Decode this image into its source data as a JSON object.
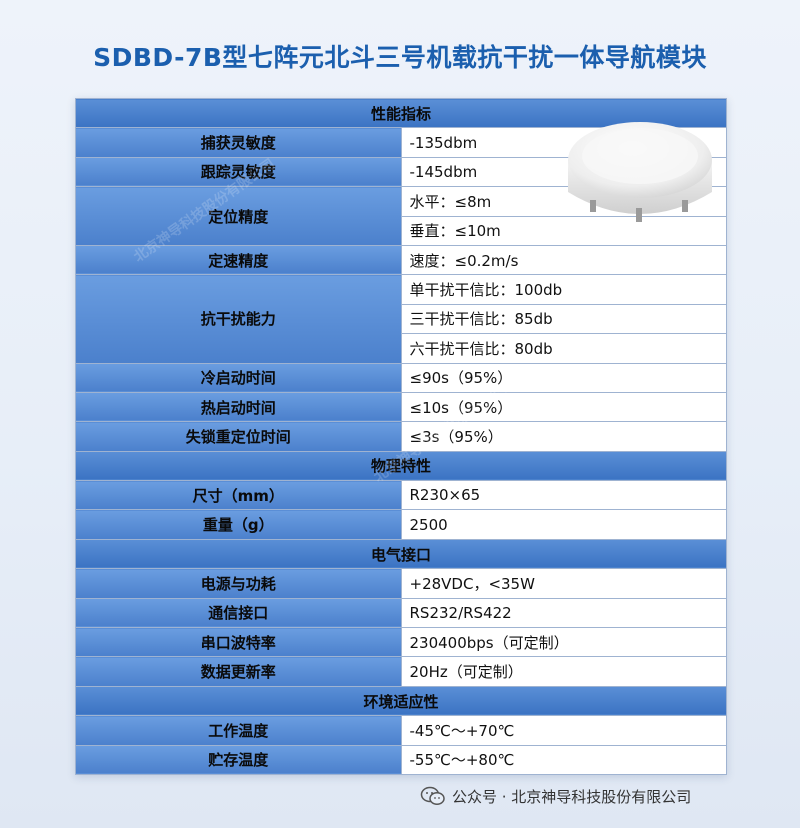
{
  "title": "SDBD-7B型七阵元北斗三号机载抗干扰一体导航模块",
  "sections": {
    "performance": "性能指标",
    "physical": "物理特性",
    "electrical": "电气接口",
    "environment": "环境适应性"
  },
  "rows": {
    "acq_label": "捕获灵敏度",
    "acq_value": "-135dbm",
    "trk_label": "跟踪灵敏度",
    "trk_value": "-145dbm",
    "pos_label": "定位精度",
    "pos_h": "水平：≤8m",
    "pos_v": "垂直：≤10m",
    "vel_label": "定速精度",
    "vel_value": "速度：≤0.2m/s",
    "aj_label": "抗干扰能力",
    "aj_1": "单干扰干信比：100db",
    "aj_3": "三干扰干信比：85db",
    "aj_6": "六干扰干信比：80db",
    "cold_label": "冷启动时间",
    "cold_value": "≤90s（95%）",
    "hot_label": "热启动时间",
    "hot_value": "≤10s（95%）",
    "reacq_label": "失锁重定位时间",
    "reacq_value": "≤3s（95%）",
    "size_label": "尺寸（mm）",
    "size_value": "R230×65",
    "weight_label": "重量（g）",
    "weight_value": "2500",
    "power_label": "电源与功耗",
    "power_value": "+28VDC，<35W",
    "comm_label": "通信接口",
    "comm_value": "RS232/RS422",
    "baud_label": "串口波特率",
    "baud_value": "230400bps（可定制）",
    "rate_label": "数据更新率",
    "rate_value": "20Hz（可定制）",
    "work_label": "工作温度",
    "work_value": "-45℃～+70℃",
    "store_label": "贮存温度",
    "store_value": "-55℃～+80℃"
  },
  "footer": {
    "icon": "wechat-icon",
    "text": "公众号 · 北京神导科技股份有限公司"
  },
  "colors": {
    "title": "#1b5fae",
    "header": "#3b73c3",
    "label_cell": "#5b8fd8",
    "value_cell": "#ffffff"
  }
}
